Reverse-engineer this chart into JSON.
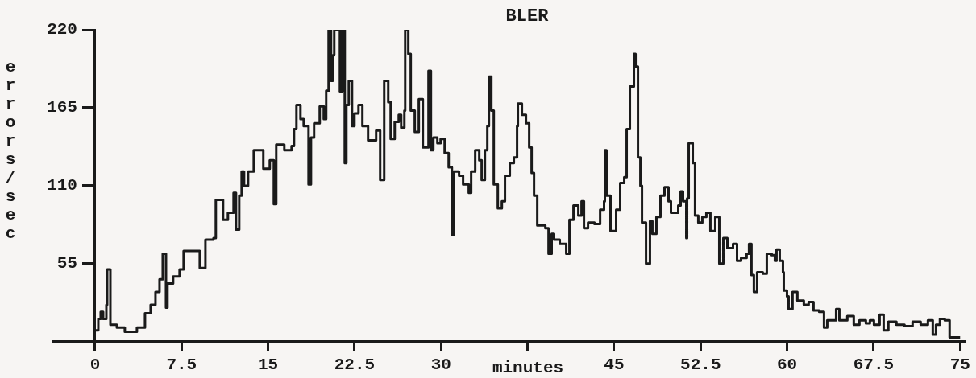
{
  "chart_data": {
    "type": "step",
    "title": "BLER",
    "xlabel": "minutes",
    "ylabel": "errors/sec",
    "color": "#1a1a1a",
    "xlim": [
      -3.7,
      75.4
    ],
    "xticks": [
      0,
      7.5,
      15,
      22.5,
      30,
      {
        "value": 37.5,
        "label": null
      },
      45,
      52.5,
      60,
      67.5,
      75
    ],
    "ylim": [
      0,
      220
    ],
    "yticks": [
      55,
      110,
      165,
      220
    ],
    "x": [
      0,
      0.28,
      0.49,
      0.7,
      0.98,
      1.05,
      1.33,
      1.89,
      2.58,
      3.63,
      4.33,
      4.82,
      5.24,
      5.59,
      5.87,
      6.15,
      6.28,
      6.77,
      7.33,
      7.68,
      8.52,
      9.08,
      9.57,
      10.27,
      10.47,
      11.1,
      11.52,
      12.01,
      12.22,
      12.5,
      12.71,
      12.92,
      13.27,
      13.76,
      14.59,
      15.15,
      15.5,
      15.71,
      16.41,
      17.04,
      17.25,
      17.46,
      17.81,
      18.09,
      18.51,
      18.72,
      18.99,
      19.48,
      19.83,
      20.04,
      20.25,
      20.46,
      20.6,
      20.74,
      21.09,
      21.23,
      21.44,
      21.65,
      21.79,
      22.0,
      22.28,
      22.49,
      22.84,
      23.18,
      23.67,
      24.37,
      24.72,
      25.07,
      25.42,
      25.63,
      25.98,
      26.33,
      26.54,
      26.82,
      26.89,
      27.16,
      27.37,
      27.72,
      28.07,
      28.42,
      28.91,
      29.12,
      29.33,
      29.68,
      29.96,
      30.31,
      30.66,
      30.94,
      31.08,
      31.56,
      31.91,
      32.4,
      32.61,
      32.96,
      33.31,
      33.52,
      33.8,
      34.01,
      34.15,
      34.36,
      34.57,
      34.92,
      35.27,
      35.54,
      35.96,
      36.31,
      36.59,
      36.66,
      37.01,
      37.36,
      37.64,
      37.85,
      38.06,
      38.34,
      39.04,
      39.32,
      39.59,
      39.8,
      39.94,
      40.29,
      40.85,
      41.13,
      41.48,
      41.9,
      42.18,
      42.39,
      42.74,
      43.3,
      43.79,
      44.13,
      44.2,
      44.34,
      44.69,
      45.18,
      45.53,
      45.88,
      46.09,
      46.37,
      46.72,
      46.86,
      47.07,
      47.28,
      47.42,
      47.77,
      48.11,
      48.32,
      48.67,
      49.02,
      49.37,
      49.72,
      49.93,
      50.56,
      50.77,
      50.98,
      51.26,
      51.33,
      51.47,
      51.82,
      52.02,
      52.3,
      52.65,
      53.0,
      53.35,
      53.77,
      54.12,
      54.47,
      54.82,
      55.31,
      55.66,
      56.01,
      56.49,
      56.7,
      56.91,
      57.12,
      57.4,
      57.89,
      58.24,
      58.66,
      58.94,
      59.08,
      59.36,
      59.64,
      59.71,
      59.99,
      60.13,
      60.47,
      60.89,
      61.45,
      61.87,
      62.29,
      62.78,
      63.2,
      63.48,
      63.9,
      64.25,
      64.53,
      65.22,
      65.78,
      66.27,
      66.83,
      67.18,
      67.53,
      68.02,
      68.37,
      68.78,
      69.48,
      70.18,
      70.88,
      71.58,
      72.21,
      72.63,
      72.91,
      73.25,
      73.67,
      74.09,
      75
    ],
    "values": [
      8,
      16,
      21,
      16,
      26,
      51,
      12,
      10,
      7,
      10,
      20,
      26,
      35,
      44,
      62,
      24,
      41,
      46,
      51,
      64,
      64,
      52,
      72,
      73,
      100,
      86,
      91,
      105,
      79,
      103,
      120,
      110,
      120,
      135,
      122,
      128,
      97,
      139,
      135,
      138,
      150,
      167,
      157,
      152,
      111,
      144,
      154,
      166,
      157,
      177,
      220,
      184,
      202,
      220,
      220,
      176,
      220,
      126,
      167,
      184,
      152,
      161,
      167,
      152,
      142,
      149,
      114,
      184,
      169,
      143,
      155,
      160,
      151,
      163,
      220,
      203,
      163,
      148,
      171,
      137,
      191,
      135,
      144,
      140,
      143,
      133,
      123,
      75,
      120,
      117,
      111,
      105,
      120,
      135,
      128,
      114,
      135,
      152,
      187,
      163,
      111,
      94,
      99,
      117,
      126,
      130,
      152,
      168,
      160,
      154,
      137,
      119,
      103,
      82,
      80,
      62,
      76,
      72,
      72,
      69,
      62,
      86,
      96,
      89,
      99,
      80,
      84,
      83,
      93,
      99,
      135,
      103,
      78,
      93,
      112,
      116,
      150,
      180,
      203,
      194,
      130,
      110,
      84,
      55,
      85,
      76,
      88,
      103,
      109,
      99,
      91,
      96,
      106,
      99,
      73,
      101,
      140,
      126,
      89,
      84,
      88,
      91,
      78,
      88,
      55,
      73,
      66,
      69,
      57,
      59,
      62,
      69,
      47,
      35,
      49,
      48,
      62,
      61,
      57,
      65,
      57,
      49,
      36,
      32,
      23,
      35,
      29,
      26,
      28,
      22,
      21,
      10,
      15,
      15,
      23,
      15,
      18,
      12,
      15,
      13,
      15,
      12,
      19,
      8,
      14,
      12,
      11,
      14,
      12,
      15,
      5,
      12,
      16,
      15,
      3,
      3
    ]
  }
}
